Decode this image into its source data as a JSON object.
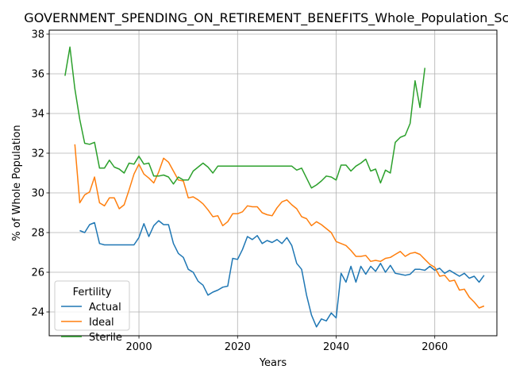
{
  "chart_data": {
    "type": "line",
    "title": "GOVERNMENT_SPENDING_ON_RETIREMENT_BENEFITS_Whole_Population_Scor",
    "xlabel": "Years",
    "ylabel": "% of Whole Population",
    "xlim": [
      1981.8,
      2072.6
    ],
    "ylim": [
      22.8,
      38.2
    ],
    "xticks": [
      2000,
      2020,
      2040,
      2060
    ],
    "yticks": [
      24,
      26,
      28,
      30,
      32,
      34,
      36,
      38
    ],
    "grid": true,
    "legend": {
      "title": "Fertility",
      "position": "lower-left"
    },
    "colors": {
      "Actual": "#1f77b4",
      "Ideal": "#ff7f0e",
      "Sterile": "#2ca02c"
    },
    "series": [
      {
        "name": "Actual",
        "x": [
          1988,
          1989,
          1990,
          1991,
          1992,
          1993,
          1994,
          1995,
          1996,
          1997,
          1998,
          1999,
          2000,
          2001,
          2002,
          2003,
          2004,
          2005,
          2006,
          2007,
          2008,
          2009,
          2010,
          2011,
          2012,
          2013,
          2014,
          2015,
          2016,
          2017,
          2018,
          2019,
          2020,
          2021,
          2022,
          2023,
          2024,
          2025,
          2026,
          2027,
          2028,
          2029,
          2030,
          2031,
          2032,
          2033,
          2034,
          2035,
          2036,
          2037,
          2038,
          2039,
          2040,
          2041,
          2042,
          2043,
          2044,
          2045,
          2046,
          2047,
          2048,
          2049,
          2050,
          2051,
          2052,
          2053,
          2054,
          2055,
          2056,
          2057,
          2058,
          2059,
          2060,
          2061,
          2062,
          2063,
          2064,
          2065,
          2066,
          2067,
          2068,
          2069,
          2070
        ],
        "y": [
          28.1,
          28.0,
          28.4,
          28.5,
          27.45,
          27.38,
          27.38,
          27.38,
          27.38,
          27.38,
          27.38,
          27.38,
          27.75,
          28.45,
          27.8,
          28.35,
          28.6,
          28.4,
          28.4,
          27.45,
          26.95,
          26.75,
          26.15,
          26.0,
          25.55,
          25.35,
          24.85,
          25.0,
          25.1,
          25.25,
          25.3,
          26.7,
          26.65,
          27.15,
          27.8,
          27.65,
          27.85,
          27.45,
          27.6,
          27.5,
          27.65,
          27.45,
          27.75,
          27.35,
          26.45,
          26.15,
          24.85,
          23.85,
          23.25,
          23.65,
          23.55,
          23.95,
          23.7,
          25.95,
          25.5,
          26.3,
          25.5,
          26.3,
          25.9,
          26.3,
          26.05,
          26.45,
          26.0,
          26.35,
          25.95,
          25.9,
          25.85,
          25.9,
          26.15,
          26.15,
          26.1,
          26.3,
          26.1,
          26.2,
          25.95,
          26.1,
          25.95,
          25.8,
          25.95,
          25.7,
          25.8,
          25.5,
          25.85
        ]
      },
      {
        "name": "Ideal",
        "x": [
          1987,
          1988,
          1989,
          1990,
          1991,
          1992,
          1993,
          1994,
          1995,
          1996,
          1997,
          1998,
          1999,
          2000,
          2001,
          2002,
          2003,
          2004,
          2005,
          2006,
          2007,
          2008,
          2009,
          2010,
          2011,
          2012,
          2013,
          2014,
          2015,
          2016,
          2017,
          2018,
          2019,
          2020,
          2021,
          2022,
          2023,
          2024,
          2025,
          2026,
          2027,
          2028,
          2029,
          2030,
          2031,
          2032,
          2033,
          2034,
          2035,
          2036,
          2037,
          2038,
          2039,
          2040,
          2041,
          2042,
          2043,
          2044,
          2045,
          2046,
          2047,
          2048,
          2049,
          2050,
          2051,
          2052,
          2053,
          2054,
          2055,
          2056,
          2057,
          2058,
          2059,
          2060,
          2061,
          2062,
          2063,
          2064,
          2065,
          2066,
          2067,
          2068,
          2069,
          2070
        ],
        "y": [
          32.45,
          29.5,
          29.9,
          30.05,
          30.8,
          29.5,
          29.35,
          29.75,
          29.75,
          29.2,
          29.4,
          30.15,
          30.95,
          31.45,
          30.95,
          30.75,
          30.5,
          31.05,
          31.75,
          31.55,
          31.1,
          30.65,
          30.6,
          29.75,
          29.8,
          29.65,
          29.45,
          29.15,
          28.8,
          28.85,
          28.35,
          28.55,
          28.95,
          28.95,
          29.05,
          29.35,
          29.3,
          29.3,
          29.0,
          28.9,
          28.85,
          29.25,
          29.55,
          29.65,
          29.4,
          29.2,
          28.8,
          28.7,
          28.35,
          28.55,
          28.4,
          28.2,
          28.0,
          27.55,
          27.45,
          27.35,
          27.1,
          26.8,
          26.8,
          26.85,
          26.55,
          26.6,
          26.55,
          26.7,
          26.75,
          26.9,
          27.05,
          26.8,
          26.95,
          27.0,
          26.9,
          26.65,
          26.4,
          26.25,
          25.8,
          25.85,
          25.55,
          25.6,
          25.1,
          25.15,
          24.75,
          24.5,
          24.2,
          24.3
        ]
      },
      {
        "name": "Sterile",
        "x": [
          1985,
          1986,
          1987,
          1988,
          1989,
          1990,
          1991,
          1992,
          1993,
          1994,
          1995,
          1996,
          1997,
          1998,
          1999,
          2000,
          2001,
          2002,
          2003,
          2004,
          2005,
          2006,
          2007,
          2008,
          2009,
          2010,
          2011,
          2012,
          2013,
          2014,
          2015,
          2016,
          2017,
          2018,
          2019,
          2020,
          2021,
          2022,
          2023,
          2024,
          2025,
          2026,
          2027,
          2028,
          2029,
          2030,
          2031,
          2032,
          2033,
          2034,
          2035,
          2036,
          2037,
          2038,
          2039,
          2040,
          2041,
          2042,
          2043,
          2044,
          2045,
          2046,
          2047,
          2048,
          2049,
          2050,
          2051,
          2052,
          2053,
          2054,
          2055,
          2056,
          2057,
          2058
        ],
        "y": [
          35.9,
          37.35,
          35.25,
          33.7,
          32.5,
          32.45,
          32.55,
          31.25,
          31.25,
          31.65,
          31.3,
          31.2,
          31.0,
          31.5,
          31.45,
          31.85,
          31.45,
          31.5,
          30.85,
          30.85,
          30.9,
          30.8,
          30.45,
          30.8,
          30.65,
          30.65,
          31.1,
          31.3,
          31.5,
          31.3,
          31.0,
          31.35,
          31.35,
          31.35,
          31.35,
          31.35,
          31.35,
          31.35,
          31.35,
          31.35,
          31.35,
          31.35,
          31.35,
          31.35,
          31.35,
          31.35,
          31.35,
          31.15,
          31.25,
          30.75,
          30.25,
          30.4,
          30.6,
          30.85,
          30.8,
          30.65,
          31.4,
          31.4,
          31.1,
          31.35,
          31.5,
          31.7,
          31.1,
          31.2,
          30.5,
          31.15,
          31.0,
          32.55,
          32.8,
          32.9,
          33.5,
          35.65,
          34.3,
          36.3
        ]
      }
    ]
  }
}
